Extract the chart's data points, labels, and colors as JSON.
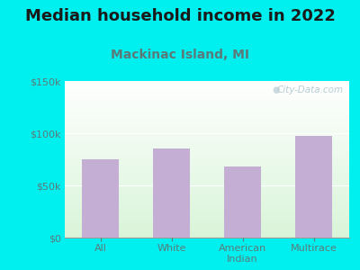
{
  "title": "Median household income in 2022",
  "subtitle": "Mackinac Island, MI",
  "categories": [
    "All",
    "White",
    "American\nIndian",
    "Multirace"
  ],
  "values": [
    75000,
    85000,
    68000,
    97000
  ],
  "bar_color": "#c4aed4",
  "ylim": [
    0,
    150000
  ],
  "yticks": [
    0,
    50000,
    100000,
    150000
  ],
  "ytick_labels": [
    "$0",
    "$50k",
    "$100k",
    "$150k"
  ],
  "background_outer": "#00f0f0",
  "title_fontsize": 13,
  "title_color": "#1a1a1a",
  "subtitle_fontsize": 10,
  "subtitle_color": "#5a7a7a",
  "tick_color": "#5a7a7a",
  "ytick_fontsize": 8,
  "xtick_fontsize": 8,
  "watermark_text": "City-Data.com",
  "watermark_color": "#b8cdd4"
}
